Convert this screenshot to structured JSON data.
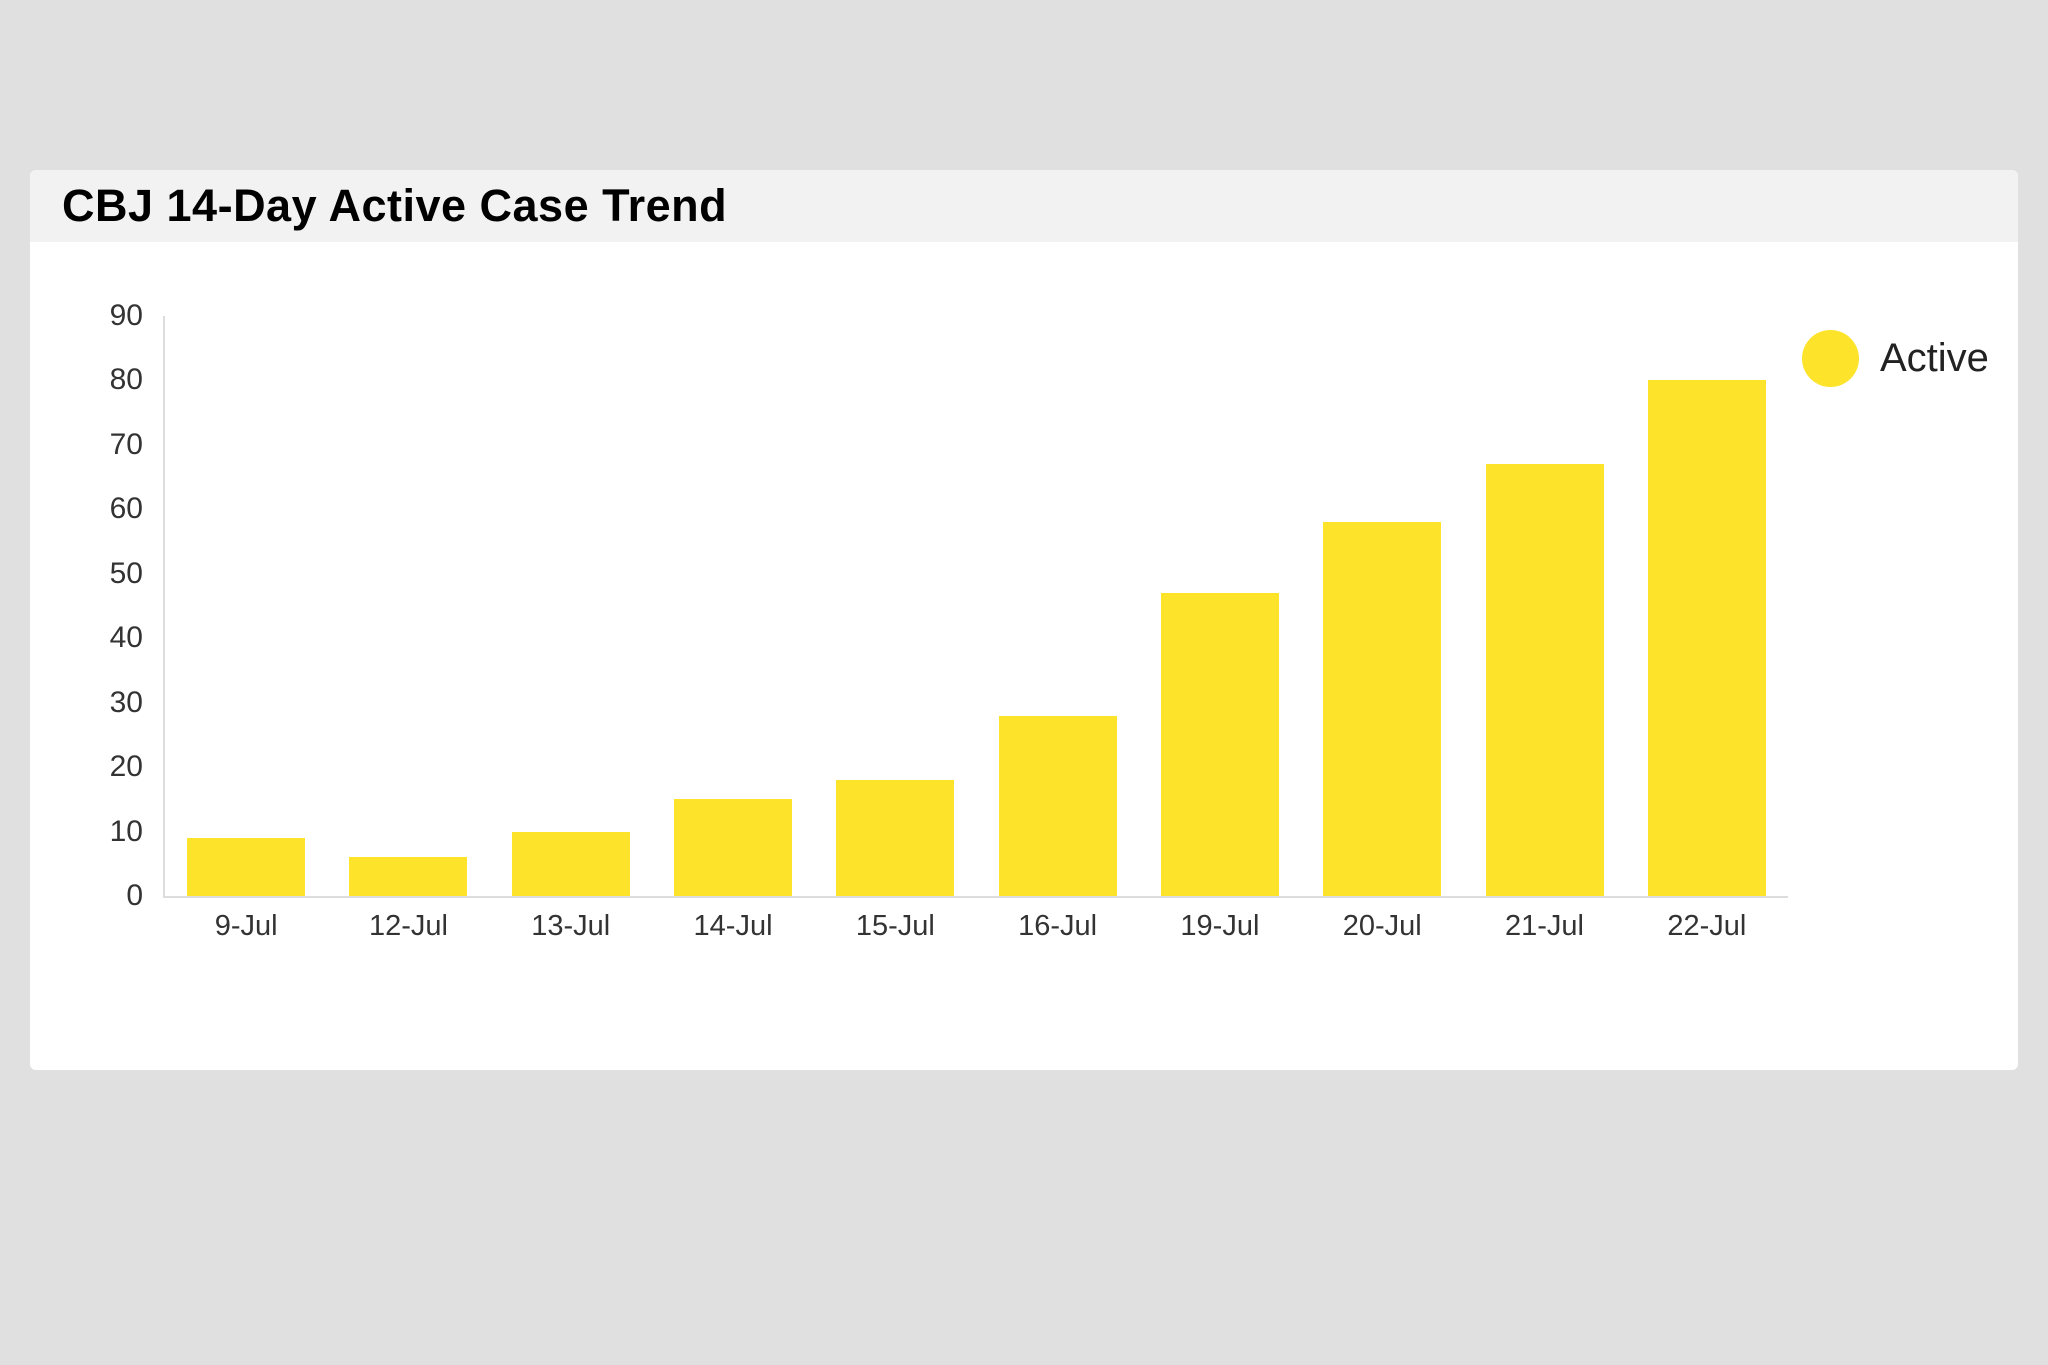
{
  "colors": {
    "page_background": "#e0e0e0",
    "card_background": "#ffffff",
    "header_background": "#f2f2f2",
    "bar": "#fde329",
    "axis_line": "#dddddd",
    "tick_label": "#333333",
    "title": "#000000"
  },
  "card": {
    "title": "CBJ 14-Day Active Case Trend"
  },
  "chart_data": {
    "type": "bar",
    "title": "CBJ 14-Day Active Case Trend",
    "categories": [
      "9-Jul",
      "12-Jul",
      "13-Jul",
      "14-Jul",
      "15-Jul",
      "16-Jul",
      "19-Jul",
      "20-Jul",
      "21-Jul",
      "22-Jul"
    ],
    "series": [
      {
        "name": "Active",
        "color": "#fde329",
        "values": [
          9,
          6,
          10,
          15,
          18,
          28,
          47,
          58,
          67,
          80
        ]
      }
    ],
    "xlabel": "",
    "ylabel": "",
    "ylim": [
      0,
      90
    ],
    "yticks": [
      0,
      10,
      20,
      30,
      40,
      50,
      60,
      70,
      80,
      90
    ],
    "grid": false,
    "legend_position": "top-right",
    "plot_background": "#ffffff"
  }
}
